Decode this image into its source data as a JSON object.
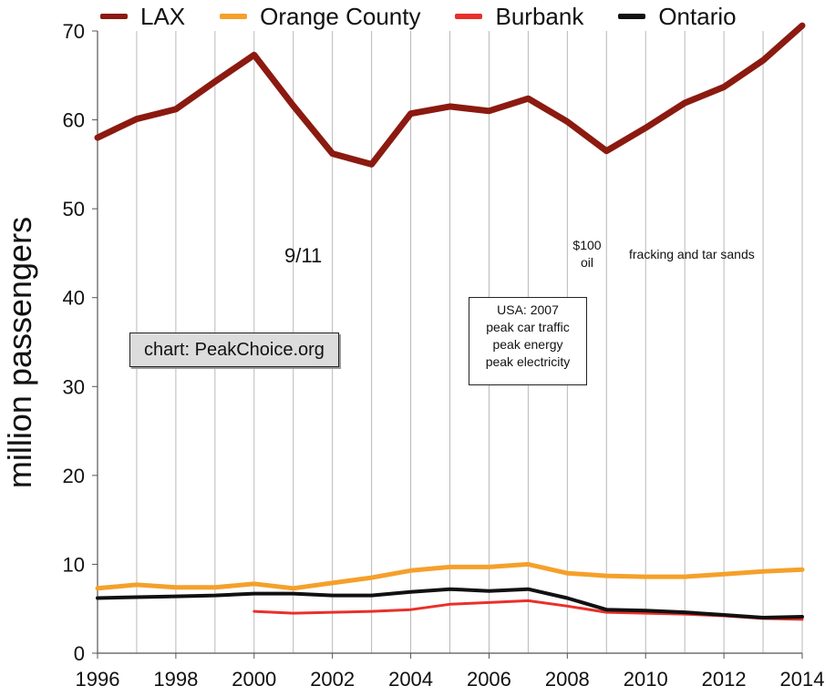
{
  "chart_data": {
    "type": "line",
    "ylabel": "million passengers",
    "xlabel": "",
    "xlim": [
      1996,
      2014
    ],
    "ylim": [
      0,
      70
    ],
    "x_ticks": [
      "1996",
      "1998",
      "2000",
      "2002",
      "2004",
      "2006",
      "2008",
      "2010",
      "2012",
      "2014"
    ],
    "y_ticks": [
      "0",
      "10",
      "20",
      "30",
      "40",
      "50",
      "60",
      "70"
    ],
    "grid": "vertical",
    "legend_position": "top",
    "series": [
      {
        "name": "LAX",
        "color": "#8b1a10",
        "x": [
          1996,
          1997,
          1998,
          1999,
          2000,
          2001,
          2002,
          2003,
          2004,
          2005,
          2006,
          2007,
          2008,
          2009,
          2010,
          2011,
          2012,
          2013,
          2014
        ],
        "values": [
          58.0,
          60.1,
          61.2,
          64.3,
          67.3,
          61.6,
          56.2,
          55.0,
          60.7,
          61.5,
          61.0,
          62.4,
          59.8,
          56.5,
          59.1,
          61.9,
          63.7,
          66.7,
          70.6
        ]
      },
      {
        "name": "Orange County",
        "color": "#f5a02a",
        "x": [
          1996,
          1997,
          1998,
          1999,
          2000,
          2001,
          2002,
          2003,
          2004,
          2005,
          2006,
          2007,
          2008,
          2009,
          2010,
          2011,
          2012,
          2013,
          2014
        ],
        "values": [
          7.3,
          7.7,
          7.4,
          7.4,
          7.8,
          7.3,
          7.9,
          8.5,
          9.3,
          9.7,
          9.7,
          10.0,
          9.0,
          8.7,
          8.6,
          8.6,
          8.9,
          9.2,
          9.4
        ]
      },
      {
        "name": "Burbank",
        "color": "#e8302a",
        "x": [
          2000,
          2001,
          2002,
          2003,
          2004,
          2005,
          2006,
          2007,
          2008,
          2009,
          2010,
          2011,
          2012,
          2013,
          2014
        ],
        "values": [
          4.7,
          4.5,
          4.6,
          4.7,
          4.9,
          5.5,
          5.7,
          5.9,
          5.3,
          4.6,
          4.5,
          4.4,
          4.2,
          3.9,
          3.8
        ]
      },
      {
        "name": "Ontario",
        "color": "#111111",
        "x": [
          1996,
          1997,
          1998,
          1999,
          2000,
          2001,
          2002,
          2003,
          2004,
          2005,
          2006,
          2007,
          2008,
          2009,
          2010,
          2011,
          2012,
          2013,
          2014
        ],
        "values": [
          6.2,
          6.3,
          6.4,
          6.5,
          6.7,
          6.7,
          6.5,
          6.5,
          6.9,
          7.2,
          7.0,
          7.2,
          6.2,
          4.9,
          4.8,
          4.6,
          4.3,
          4.0,
          4.1
        ]
      }
    ],
    "annotations": {
      "nine_eleven": "9/11",
      "oil_line1": "$100",
      "oil_line2": "oil",
      "fracking": "fracking and tar sands",
      "credit": "chart: PeakChoice.org",
      "usa_lines": [
        "USA: 2007",
        "peak car traffic",
        "peak energy",
        "peak electricity"
      ]
    }
  }
}
